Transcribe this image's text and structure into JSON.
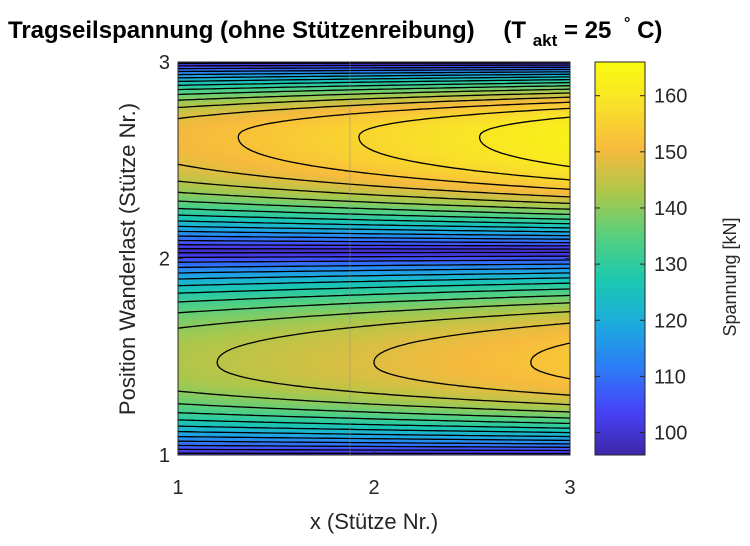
{
  "chart_data": {
    "type": "heatmap",
    "subtype": "filled-contour",
    "title_parts": {
      "main": "Tragseilspannung (ohne Stützenreibung)",
      "paren_open": "(T",
      "subscript": "akt",
      "value": "= 25",
      "degree": "°",
      "unit_close": "C)"
    },
    "xlabel": "x (Stütze Nr.)",
    "ylabel": "Position Wanderlast (Stütze Nr.)",
    "colorbar_label": "Spannung [kN]",
    "xlim": [
      1,
      3
    ],
    "ylim": [
      1,
      3
    ],
    "x_ticks": [
      1,
      2,
      3
    ],
    "y_ticks": [
      1,
      2,
      3
    ],
    "clim": [
      96,
      166
    ],
    "colorbar_ticks": [
      100,
      110,
      120,
      130,
      140,
      150,
      160
    ],
    "colormap": "parula",
    "colormap_stops": [
      "#3e26a8",
      "#4743f8",
      "#2c7cf6",
      "#1cabde",
      "#1bc8b0",
      "#56d07f",
      "#acc74b",
      "#f7ba3d",
      "#f9e02a",
      "#f9fb0e"
    ],
    "contour_levels": [
      100,
      104,
      108,
      112,
      116,
      120,
      124,
      128,
      132,
      136,
      140,
      144,
      148,
      152,
      156,
      160
    ],
    "model": {
      "description_of_values": "Spannung in kN as function of x and load position",
      "y_peak_upper": 2.62,
      "y_peak_lower": 1.47,
      "peak_upper_at_x1": 150,
      "peak_upper_at_x3": 163,
      "peak_lower_at_x1": 143,
      "peak_lower_at_x3": 153,
      "trough_y_values": [
        1.0,
        2.04,
        3.0
      ],
      "trough_value": 98
    },
    "grid": false
  }
}
